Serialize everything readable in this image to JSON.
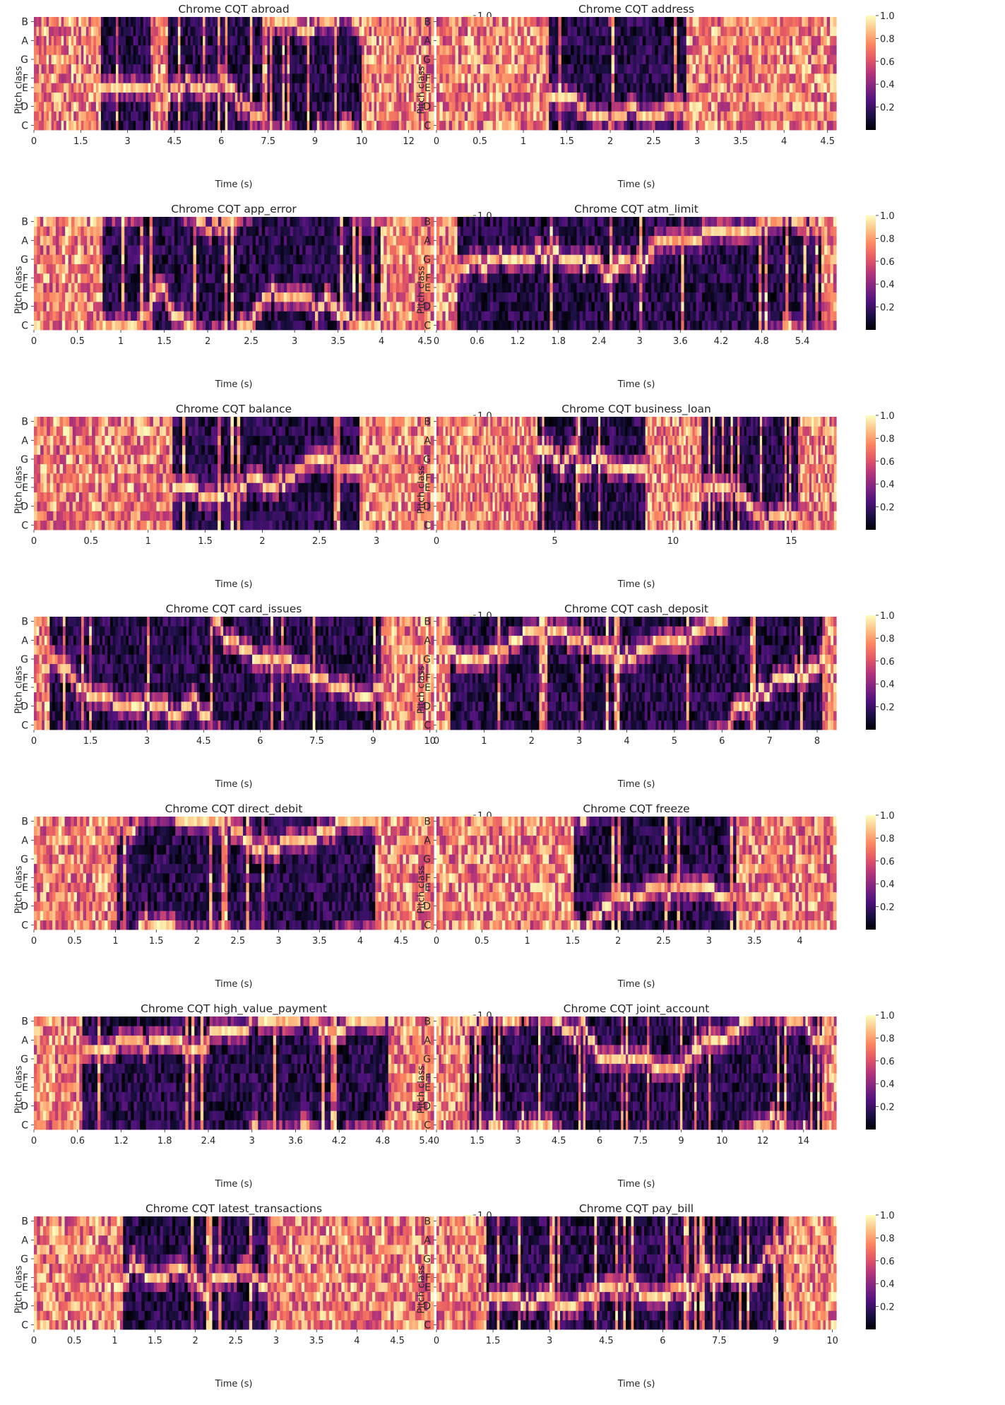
{
  "figure": {
    "colormap": "magma",
    "colormap_stops": [
      "#000004",
      "#1c1044",
      "#4f127b",
      "#812581",
      "#b5367a",
      "#e55964",
      "#fb8761",
      "#fec287",
      "#fcfdbf"
    ]
  },
  "chart_data": [
    {
      "type": "heatmap",
      "title": "Chrome CQT abroad",
      "xlabel": "Time (s)",
      "ylabel": "Pitch class",
      "x_ticks": [
        "0",
        "1.5",
        "3",
        "4.5",
        "6",
        "7.5",
        "9",
        "10",
        "12"
      ],
      "x_tick_values": [
        0,
        1.5,
        3,
        4.5,
        6,
        7.5,
        9,
        10.5,
        12
      ],
      "xlim": [
        0,
        12.8
      ],
      "y_ticks": [
        "C",
        "D",
        "E",
        "F",
        "G",
        "A",
        "B"
      ],
      "colorbar_ticks": [
        "0.2",
        "0.4",
        "0.6",
        "0.8",
        "1.0"
      ],
      "clim": [
        0,
        1
      ],
      "dark_intervals_s": [
        [
          2.1,
          3.7
        ],
        [
          4.3,
          10.5
        ]
      ]
    },
    {
      "type": "heatmap",
      "title": "Chrome CQT address",
      "xlabel": "Time (s)",
      "ylabel": "Pitch class",
      "x_ticks": [
        "0",
        "0.5",
        "1",
        "1.5",
        "2",
        "2.5",
        "3",
        "3.5",
        "4",
        "4.5"
      ],
      "x_tick_values": [
        0,
        0.5,
        1,
        1.5,
        2,
        2.5,
        3,
        3.5,
        4,
        4.5
      ],
      "xlim": [
        0,
        4.6
      ],
      "y_ticks": [
        "C",
        "D",
        "E",
        "F",
        "G",
        "A",
        "B"
      ],
      "colorbar_ticks": [
        "0.2",
        "0.4",
        "0.6",
        "0.8",
        "1.0"
      ],
      "clim": [
        0,
        1
      ],
      "dark_intervals_s": [
        [
          1.3,
          2.9
        ]
      ]
    },
    {
      "type": "heatmap",
      "title": "Chrome CQT app_error",
      "xlabel": "Time (s)",
      "ylabel": "Pitch class",
      "x_ticks": [
        "0",
        "0.5",
        "1",
        "1.5",
        "2",
        "2.5",
        "3",
        "3.5",
        "4",
        "4.5"
      ],
      "x_tick_values": [
        0,
        0.5,
        1,
        1.5,
        2,
        2.5,
        3,
        3.5,
        4,
        4.5
      ],
      "xlim": [
        0,
        4.6
      ],
      "y_ticks": [
        "C",
        "D",
        "E",
        "F",
        "G",
        "A",
        "B"
      ],
      "colorbar_ticks": [
        "0.2",
        "0.4",
        "0.6",
        "0.8",
        "1.0"
      ],
      "clim": [
        0,
        1
      ],
      "dark_intervals_s": [
        [
          0.8,
          4.0
        ]
      ]
    },
    {
      "type": "heatmap",
      "title": "Chrome CQT atm_limit",
      "xlabel": "Time (s)",
      "ylabel": "Pitch class",
      "x_ticks": [
        "0",
        "0.6",
        "1.2",
        "1.8",
        "2.4",
        "3",
        "3.6",
        "4.2",
        "4.8",
        "5.4"
      ],
      "x_tick_values": [
        0,
        0.6,
        1.2,
        1.8,
        2.4,
        3,
        3.6,
        4.2,
        4.8,
        5.4
      ],
      "xlim": [
        0,
        5.9
      ],
      "y_ticks": [
        "C",
        "D",
        "E",
        "F",
        "G",
        "A",
        "B"
      ],
      "colorbar_ticks": [
        "0.2",
        "0.4",
        "0.6",
        "0.8",
        "1.0"
      ],
      "clim": [
        0,
        1
      ],
      "dark_intervals_s": [
        [
          0.3,
          5.7
        ]
      ]
    },
    {
      "type": "heatmap",
      "title": "Chrome CQT balance",
      "xlabel": "Time (s)",
      "ylabel": "Pitch class",
      "x_ticks": [
        "0",
        "0.5",
        "1",
        "1.5",
        "2",
        "2.5",
        "3"
      ],
      "x_tick_values": [
        0,
        0.5,
        1,
        1.5,
        2,
        2.5,
        3
      ],
      "xlim": [
        0,
        3.5
      ],
      "y_ticks": [
        "C",
        "D",
        "E",
        "F",
        "G",
        "A",
        "B"
      ],
      "colorbar_ticks": [
        "0.2",
        "0.4",
        "0.6",
        "0.8",
        "1.0"
      ],
      "clim": [
        0,
        1
      ],
      "dark_intervals_s": [
        [
          1.2,
          2.9
        ]
      ]
    },
    {
      "type": "heatmap",
      "title": "Chrome CQT business_loan",
      "xlabel": "Time (s)",
      "ylabel": "Pitch class",
      "x_ticks": [
        "0",
        "5",
        "10",
        "15"
      ],
      "x_tick_values": [
        0,
        5,
        10,
        15
      ],
      "xlim": [
        0,
        16.9
      ],
      "y_ticks": [
        "C",
        "D",
        "E",
        "F",
        "G",
        "A",
        "B"
      ],
      "colorbar_ticks": [
        "0.2",
        "0.4",
        "0.6",
        "0.8",
        "1.0"
      ],
      "clim": [
        0,
        1
      ],
      "dark_intervals_s": [
        [
          4.3,
          8.9
        ],
        [
          11.2,
          15.3
        ]
      ]
    },
    {
      "type": "heatmap",
      "title": "Chrome CQT card_issues",
      "xlabel": "Time (s)",
      "ylabel": "Pitch class",
      "x_ticks": [
        "0",
        "1.5",
        "3",
        "4.5",
        "6",
        "7.5",
        "9",
        "10"
      ],
      "x_tick_values": [
        0,
        1.5,
        3,
        4.5,
        6,
        7.5,
        9,
        10.5
      ],
      "xlim": [
        0,
        10.6
      ],
      "y_ticks": [
        "C",
        "D",
        "E",
        "F",
        "G",
        "A",
        "B"
      ],
      "colorbar_ticks": [
        "0.2",
        "0.4",
        "0.6",
        "0.8",
        "1.0"
      ],
      "clim": [
        0,
        1
      ],
      "dark_intervals_s": [
        [
          0.4,
          9.2
        ]
      ]
    },
    {
      "type": "heatmap",
      "title": "Chrome CQT cash_deposit",
      "xlabel": "Time (s)",
      "ylabel": "Pitch class",
      "x_ticks": [
        "0",
        "1",
        "2",
        "3",
        "4",
        "5",
        "6",
        "7",
        "8"
      ],
      "x_tick_values": [
        0,
        1,
        2,
        3,
        4,
        5,
        6,
        7,
        8
      ],
      "xlim": [
        0,
        8.4
      ],
      "y_ticks": [
        "C",
        "D",
        "E",
        "F",
        "G",
        "A",
        "B"
      ],
      "colorbar_ticks": [
        "0.2",
        "0.4",
        "0.6",
        "0.8",
        "1.0"
      ],
      "clim": [
        0,
        1
      ],
      "dark_intervals_s": [
        [
          0.3,
          8.1
        ]
      ]
    },
    {
      "type": "heatmap",
      "title": "Chrome CQT direct_debit",
      "xlabel": "Time (s)",
      "ylabel": "Pitch class",
      "x_ticks": [
        "0",
        "0.5",
        "1",
        "1.5",
        "2",
        "2.5",
        "3",
        "3.5",
        "4",
        "4.5"
      ],
      "x_tick_values": [
        0,
        0.5,
        1,
        1.5,
        2,
        2.5,
        3,
        3.5,
        4,
        4.5
      ],
      "xlim": [
        0,
        4.9
      ],
      "y_ticks": [
        "C",
        "D",
        "E",
        "F",
        "G",
        "A",
        "B"
      ],
      "colorbar_ticks": [
        "0.2",
        "0.4",
        "0.6",
        "0.8",
        "1.0"
      ],
      "clim": [
        0,
        1
      ],
      "dark_intervals_s": [
        [
          1.0,
          4.2
        ]
      ]
    },
    {
      "type": "heatmap",
      "title": "Chrome CQT freeze",
      "xlabel": "Time (s)",
      "ylabel": "Pitch class",
      "x_ticks": [
        "0",
        "0.5",
        "1",
        "1.5",
        "2",
        "2.5",
        "3",
        "3.5",
        "4"
      ],
      "x_tick_values": [
        0,
        0.5,
        1,
        1.5,
        2,
        2.5,
        3,
        3.5,
        4
      ],
      "xlim": [
        0,
        4.4
      ],
      "y_ticks": [
        "C",
        "D",
        "E",
        "F",
        "G",
        "A",
        "B"
      ],
      "colorbar_ticks": [
        "0.2",
        "0.4",
        "0.6",
        "0.8",
        "1.0"
      ],
      "clim": [
        0,
        1
      ],
      "dark_intervals_s": [
        [
          1.5,
          3.3
        ]
      ]
    },
    {
      "type": "heatmap",
      "title": "Chrome CQT high_value_payment",
      "xlabel": "Time (s)",
      "ylabel": "Pitch class",
      "x_ticks": [
        "0",
        "0.6",
        "1.2",
        "1.8",
        "2.4",
        "3",
        "3.6",
        "4.2",
        "4.8",
        "5.4"
      ],
      "x_tick_values": [
        0,
        0.6,
        1.2,
        1.8,
        2.4,
        3,
        3.6,
        4.2,
        4.8,
        5.4
      ],
      "xlim": [
        0,
        5.5
      ],
      "y_ticks": [
        "C",
        "D",
        "E",
        "F",
        "G",
        "A",
        "B"
      ],
      "colorbar_ticks": [
        "0.2",
        "0.4",
        "0.6",
        "0.8",
        "1.0"
      ],
      "clim": [
        0,
        1
      ],
      "dark_intervals_s": [
        [
          0.65,
          4.9
        ]
      ]
    },
    {
      "type": "heatmap",
      "title": "Chrome CQT joint_account",
      "xlabel": "Time (s)",
      "ylabel": "Pitch class",
      "x_ticks": [
        "0",
        "1.5",
        "3",
        "4.5",
        "6",
        "7.5",
        "9",
        "10",
        "12",
        "14"
      ],
      "x_tick_values": [
        0,
        1.5,
        3,
        4.5,
        6,
        7.5,
        9,
        10.5,
        12,
        13.5
      ],
      "xlim": [
        0,
        14.7
      ],
      "y_ticks": [
        "C",
        "D",
        "E",
        "F",
        "G",
        "A",
        "B"
      ],
      "colorbar_ticks": [
        "0.2",
        "0.4",
        "0.6",
        "0.8",
        "1.0"
      ],
      "clim": [
        0,
        1
      ],
      "dark_intervals_s": [
        [
          1.2,
          14.2
        ]
      ]
    },
    {
      "type": "heatmap",
      "title": "Chrome CQT latest_transactions",
      "xlabel": "Time (s)",
      "ylabel": "Pitch class",
      "x_ticks": [
        "0",
        "0.5",
        "1",
        "1.5",
        "2",
        "2.5",
        "3",
        "3.5",
        "4",
        "4.5"
      ],
      "x_tick_values": [
        0,
        0.5,
        1,
        1.5,
        2,
        2.5,
        3,
        3.5,
        4,
        4.5
      ],
      "xlim": [
        0,
        4.95
      ],
      "y_ticks": [
        "C",
        "D",
        "E",
        "F",
        "G",
        "A",
        "B"
      ],
      "colorbar_ticks": [
        "0.2",
        "0.4",
        "0.6",
        "0.8",
        "1.0"
      ],
      "clim": [
        0,
        1
      ],
      "dark_intervals_s": [
        [
          1.1,
          2.9
        ]
      ]
    },
    {
      "type": "heatmap",
      "title": "Chrome CQT pay_bill",
      "xlabel": "Time (s)",
      "ylabel": "Pitch class",
      "x_ticks": [
        "0",
        "1.5",
        "3",
        "4.5",
        "6",
        "7.5",
        "9",
        "10"
      ],
      "x_tick_values": [
        0,
        1.5,
        3,
        4.5,
        6,
        7.5,
        9,
        10.5
      ],
      "xlim": [
        0,
        10.6
      ],
      "y_ticks": [
        "C",
        "D",
        "E",
        "F",
        "G",
        "A",
        "B"
      ],
      "colorbar_ticks": [
        "0.2",
        "0.4",
        "0.6",
        "0.8",
        "1.0"
      ],
      "clim": [
        0,
        1
      ],
      "dark_intervals_s": [
        [
          1.3,
          9.2
        ]
      ]
    }
  ]
}
